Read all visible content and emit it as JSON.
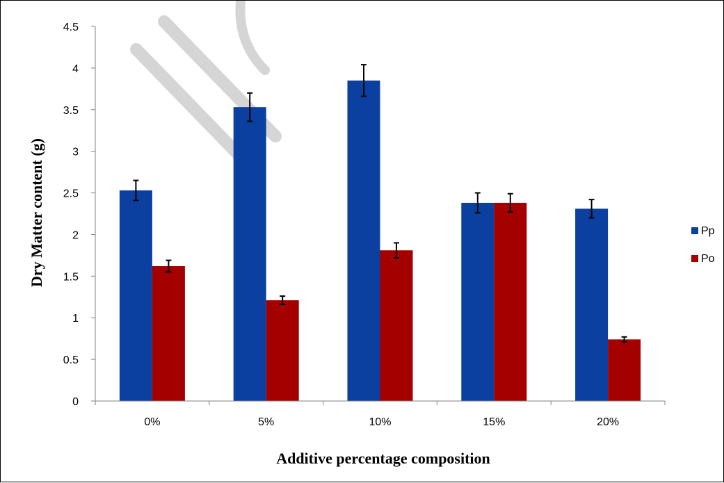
{
  "chart_data": {
    "type": "bar",
    "categories": [
      "0%",
      "5%",
      "10%",
      "15%",
      "20%"
    ],
    "series": [
      {
        "name": "Pp",
        "color": "#0b3fa0",
        "values": [
          2.53,
          3.53,
          3.85,
          2.38,
          2.31
        ],
        "errors": [
          0.12,
          0.17,
          0.19,
          0.12,
          0.11
        ]
      },
      {
        "name": "Po",
        "color": "#a50000",
        "values": [
          1.62,
          1.21,
          1.81,
          2.38,
          0.74
        ],
        "errors": [
          0.07,
          0.05,
          0.09,
          0.11,
          0.03
        ]
      }
    ],
    "xlabel": "Additive  percentage composition",
    "ylabel": "Dry Matter content (g)",
    "ylim": [
      0,
      4.5
    ],
    "yticks": [
      "0",
      "0.5",
      "1",
      "1.5",
      "2",
      "2.5",
      "3",
      "3.5",
      "4",
      "4.5"
    ],
    "legend": "right",
    "grid": false
  }
}
